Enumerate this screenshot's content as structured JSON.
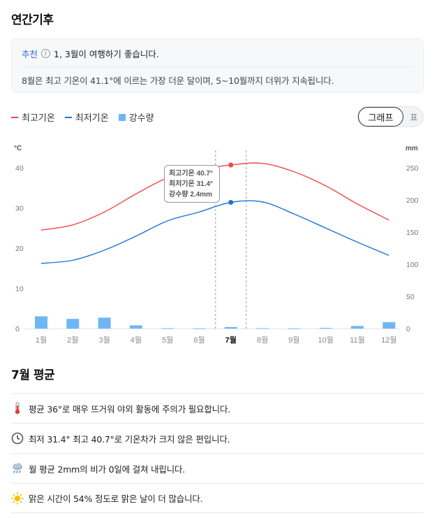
{
  "titles": {
    "annual": "연간기후",
    "month": "7월 평균"
  },
  "recommend": {
    "label": "추천",
    "info_icon": "info-icon",
    "text": "1, 3월이 여행하기 좋습니다.",
    "summary": "8월은 최고 기온이 41.1°에 이르는 가장 더운 달이며, 5~10월까지 더위가 지속됩니다."
  },
  "legend": [
    {
      "label": "최고기온",
      "color": "#f04848"
    },
    {
      "label": "최저기온",
      "color": "#1a73d9"
    },
    {
      "label": "강수량",
      "color": "#6fb6f5"
    }
  ],
  "toggle": {
    "graph": "그래프",
    "table": "표"
  },
  "chart_data": {
    "type": "line",
    "x_unit": "°C",
    "y2_unit": "mm",
    "categories": [
      "1월",
      "2월",
      "3월",
      "4월",
      "5월",
      "6월",
      "7월",
      "8월",
      "9월",
      "10월",
      "11월",
      "12월"
    ],
    "selected_index": 6,
    "ylim": [
      0,
      40
    ],
    "y_ticks": [
      0,
      10,
      20,
      30,
      40
    ],
    "y2lim": [
      0,
      250
    ],
    "y2_ticks": [
      0,
      50,
      100,
      150,
      200,
      250
    ],
    "series": [
      {
        "name": "최고기온",
        "color": "#f04848",
        "values": [
          24.5,
          25.8,
          29,
          33.5,
          37.5,
          39.5,
          40.7,
          41.1,
          39,
          35.5,
          31,
          27
        ]
      },
      {
        "name": "최저기온",
        "color": "#1a73d9",
        "values": [
          16.2,
          17,
          19.5,
          23,
          26.8,
          29,
          31.4,
          31.5,
          28.5,
          25,
          21.5,
          18.2
        ]
      },
      {
        "name": "강수량",
        "color": "#6fb6f5",
        "type": "bar",
        "values": [
          19,
          15,
          17,
          5,
          0.5,
          0.3,
          2.4,
          0.5,
          0.3,
          1,
          4,
          10
        ]
      }
    ],
    "grid": false,
    "legend_position": "top-left"
  },
  "tooltip": {
    "high": "최고기온 40.7°",
    "low": "최저기온 31.4°",
    "rain": "강수량 2.4mm"
  },
  "stats": [
    {
      "icon": "thermometer-icon",
      "text": "평균 36°로 매우 뜨거워 야외 활동에 주의가 필요합니다."
    },
    {
      "icon": "clock-icon",
      "text": "최저 31.4° 최고 40.7°로 기온차가 크지 않은 편입니다."
    },
    {
      "icon": "rain-cloud-icon",
      "text": "월 평균 2mm의 비가 0일에 걸쳐 내립니다."
    },
    {
      "icon": "sun-icon",
      "text": "맑은 시간이 54% 정도로 맑은 날이 더 많습니다."
    }
  ]
}
